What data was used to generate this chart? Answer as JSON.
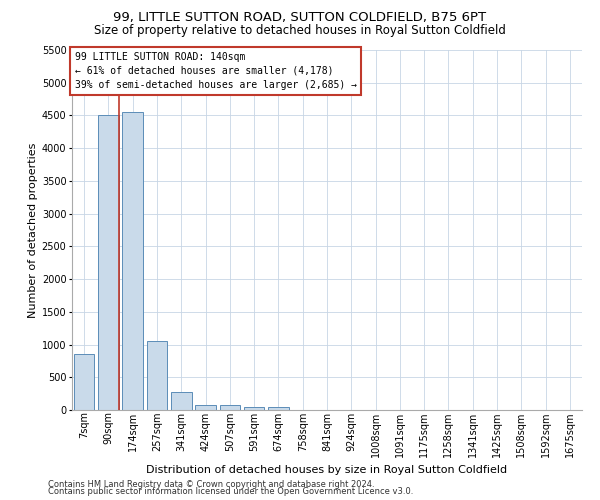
{
  "title_line1": "99, LITTLE SUTTON ROAD, SUTTON COLDFIELD, B75 6PT",
  "title_line2": "Size of property relative to detached houses in Royal Sutton Coldfield",
  "xlabel": "Distribution of detached houses by size in Royal Sutton Coldfield",
  "ylabel": "Number of detached properties",
  "footer_line1": "Contains HM Land Registry data © Crown copyright and database right 2024.",
  "footer_line2": "Contains public sector information licensed under the Open Government Licence v3.0.",
  "annotation_line1": "99 LITTLE SUTTON ROAD: 140sqm",
  "annotation_line2": "← 61% of detached houses are smaller (4,178)",
  "annotation_line3": "39% of semi-detached houses are larger (2,685) →",
  "categories": [
    "7sqm",
    "90sqm",
    "174sqm",
    "257sqm",
    "341sqm",
    "424sqm",
    "507sqm",
    "591sqm",
    "674sqm",
    "758sqm",
    "841sqm",
    "924sqm",
    "1008sqm",
    "1091sqm",
    "1175sqm",
    "1258sqm",
    "1341sqm",
    "1425sqm",
    "1508sqm",
    "1592sqm",
    "1675sqm"
  ],
  "values": [
    850,
    4500,
    4550,
    1050,
    275,
    75,
    75,
    50,
    50,
    0,
    0,
    0,
    0,
    0,
    0,
    0,
    0,
    0,
    0,
    0,
    0
  ],
  "bar_color": "#c9daea",
  "bar_edge_color": "#5b8db8",
  "vline_x": 1.42,
  "vline_color": "#c0392b",
  "ylim": [
    0,
    5500
  ],
  "yticks": [
    0,
    500,
    1000,
    1500,
    2000,
    2500,
    3000,
    3500,
    4000,
    4500,
    5000,
    5500
  ],
  "grid_color": "#c8d6e5",
  "annotation_box_color": "#ffffff",
  "annotation_box_edge": "#c0392b",
  "background_color": "#ffffff",
  "title_fontsize": 9.5,
  "subtitle_fontsize": 8.5,
  "ylabel_fontsize": 8,
  "xlabel_fontsize": 8,
  "tick_fontsize": 7,
  "footer_fontsize": 6,
  "annot_fontsize": 7
}
